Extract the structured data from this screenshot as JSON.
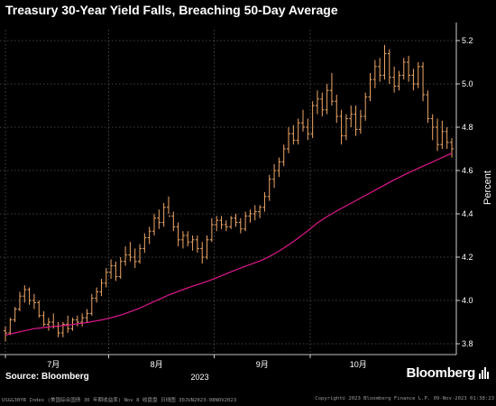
{
  "header": {
    "title": "Treasury 30-Year Yield Falls, Breaching 50-Day Average"
  },
  "footer": {
    "source": "Source: Bloomberg",
    "brand": "Bloomberg",
    "meta_left": "USGG30YR Index (美国综合国债 30 年期收益率) Nov 8 收盘盘 日线图 30JUN2023-08NOV2023",
    "meta_right": "Copyright© 2023 Bloomberg Finance L.P.     09-Nov-2023 01:38:23"
  },
  "colors": {
    "background": "#000000",
    "candle": "#f0a868",
    "moving_average": "#e0188c",
    "grid": "#555555"
  },
  "chart_data": {
    "type": "line",
    "ylabel": "Percent",
    "ylim": [
      3.75,
      5.25
    ],
    "yticks": [
      3.8,
      4.0,
      4.2,
      4.4,
      4.6,
      4.8,
      5.0,
      5.2
    ],
    "ytick_labels": [
      "3.8",
      "4.0",
      "4.2",
      "4.4",
      "4.6",
      "4.8",
      "5.0",
      "5.2"
    ],
    "month_ticks": [
      {
        "label": "7月",
        "index": 0.0
      },
      {
        "label": "8月",
        "index": 21.5
      },
      {
        "label": "9月",
        "index": 43.5
      },
      {
        "label": "10月",
        "index": 63.5
      }
    ],
    "year_label": "2023",
    "n_days": 94,
    "series": [
      {
        "kind": "ohlc",
        "values": [
          [
            3.86,
            3.88,
            3.81,
            3.85
          ],
          [
            3.85,
            3.92,
            3.84,
            3.91
          ],
          [
            3.91,
            3.97,
            3.9,
            3.96
          ],
          [
            3.96,
            4.04,
            3.95,
            4.02
          ],
          [
            4.02,
            4.07,
            3.99,
            4.05
          ],
          [
            4.05,
            4.06,
            3.98,
            4.0
          ],
          [
            4.0,
            4.03,
            3.96,
            3.99
          ],
          [
            3.99,
            4.0,
            3.92,
            3.93
          ],
          [
            3.93,
            3.95,
            3.88,
            3.89
          ],
          [
            3.89,
            3.92,
            3.86,
            3.9
          ],
          [
            3.9,
            3.94,
            3.87,
            3.88
          ],
          [
            3.88,
            3.9,
            3.83,
            3.85
          ],
          [
            3.85,
            3.9,
            3.83,
            3.89
          ],
          [
            3.89,
            3.93,
            3.85,
            3.87
          ],
          [
            3.87,
            3.92,
            3.86,
            3.91
          ],
          [
            3.91,
            3.93,
            3.88,
            3.9
          ],
          [
            3.9,
            3.94,
            3.88,
            3.92
          ],
          [
            3.92,
            3.96,
            3.9,
            3.94
          ],
          [
            3.94,
            4.03,
            3.93,
            4.01
          ],
          [
            4.01,
            4.06,
            3.99,
            4.04
          ],
          [
            4.04,
            4.1,
            4.02,
            4.08
          ],
          [
            4.08,
            4.15,
            4.06,
            4.13
          ],
          [
            4.13,
            4.19,
            4.1,
            4.16
          ],
          [
            4.16,
            4.18,
            4.09,
            4.11
          ],
          [
            4.11,
            4.2,
            4.1,
            4.18
          ],
          [
            4.18,
            4.25,
            4.16,
            4.21
          ],
          [
            4.21,
            4.27,
            4.18,
            4.2
          ],
          [
            4.2,
            4.24,
            4.15,
            4.18
          ],
          [
            4.18,
            4.26,
            4.17,
            4.24
          ],
          [
            4.24,
            4.31,
            4.22,
            4.29
          ],
          [
            4.29,
            4.34,
            4.26,
            4.32
          ],
          [
            4.32,
            4.4,
            4.3,
            4.38
          ],
          [
            4.38,
            4.42,
            4.33,
            4.36
          ],
          [
            4.36,
            4.45,
            4.34,
            4.43
          ],
          [
            4.43,
            4.48,
            4.4,
            4.39
          ],
          [
            4.39,
            4.41,
            4.32,
            4.34
          ],
          [
            4.34,
            4.36,
            4.25,
            4.28
          ],
          [
            4.28,
            4.32,
            4.24,
            4.3
          ],
          [
            4.3,
            4.32,
            4.25,
            4.27
          ],
          [
            4.27,
            4.3,
            4.23,
            4.28
          ],
          [
            4.28,
            4.3,
            4.22,
            4.24
          ],
          [
            4.24,
            4.27,
            4.17,
            4.2
          ],
          [
            4.2,
            4.3,
            4.19,
            4.28
          ],
          [
            4.28,
            4.38,
            4.27,
            4.35
          ],
          [
            4.35,
            4.39,
            4.32,
            4.37
          ],
          [
            4.37,
            4.39,
            4.33,
            4.35
          ],
          [
            4.35,
            4.37,
            4.32,
            4.34
          ],
          [
            4.34,
            4.39,
            4.33,
            4.38
          ],
          [
            4.38,
            4.4,
            4.34,
            4.36
          ],
          [
            4.36,
            4.38,
            4.31,
            4.33
          ],
          [
            4.33,
            4.41,
            4.32,
            4.39
          ],
          [
            4.39,
            4.42,
            4.36,
            4.4
          ],
          [
            4.4,
            4.44,
            4.37,
            4.41
          ],
          [
            4.41,
            4.44,
            4.38,
            4.43
          ],
          [
            4.43,
            4.5,
            4.41,
            4.48
          ],
          [
            4.48,
            4.58,
            4.46,
            4.56
          ],
          [
            4.56,
            4.63,
            4.52,
            4.6
          ],
          [
            4.6,
            4.66,
            4.57,
            4.64
          ],
          [
            4.64,
            4.72,
            4.62,
            4.7
          ],
          [
            4.7,
            4.8,
            4.68,
            4.77
          ],
          [
            4.77,
            4.81,
            4.72,
            4.74
          ],
          [
            4.74,
            4.84,
            4.72,
            4.82
          ],
          [
            4.82,
            4.88,
            4.78,
            4.8
          ],
          [
            4.8,
            4.84,
            4.74,
            4.77
          ],
          [
            4.77,
            4.92,
            4.75,
            4.9
          ],
          [
            4.9,
            4.97,
            4.86,
            4.93
          ],
          [
            4.93,
            4.96,
            4.85,
            4.88
          ],
          [
            4.88,
            5.0,
            4.86,
            4.97
          ],
          [
            4.97,
            5.05,
            4.9,
            4.92
          ],
          [
            4.92,
            4.95,
            4.82,
            4.85
          ],
          [
            4.85,
            4.88,
            4.72,
            4.76
          ],
          [
            4.76,
            4.86,
            4.74,
            4.84
          ],
          [
            4.84,
            4.9,
            4.8,
            4.86
          ],
          [
            4.86,
            4.9,
            4.76,
            4.79
          ],
          [
            4.79,
            4.88,
            4.77,
            4.85
          ],
          [
            4.85,
            4.96,
            4.83,
            4.94
          ],
          [
            4.94,
            5.05,
            4.92,
            5.02
          ],
          [
            5.02,
            5.11,
            4.98,
            5.08
          ],
          [
            5.08,
            5.12,
            5.01,
            5.04
          ],
          [
            5.04,
            5.18,
            5.02,
            5.14
          ],
          [
            5.14,
            5.16,
            5.0,
            5.03
          ],
          [
            5.03,
            5.08,
            4.96,
            4.99
          ],
          [
            4.99,
            5.06,
            4.97,
            5.04
          ],
          [
            5.04,
            5.12,
            5.02,
            5.1
          ],
          [
            5.1,
            5.13,
            5.01,
            5.04
          ],
          [
            5.04,
            5.07,
            4.97,
            5.0
          ],
          [
            5.0,
            5.1,
            4.98,
            5.08
          ],
          [
            5.08,
            5.1,
            4.92,
            4.95
          ],
          [
            4.95,
            4.97,
            4.82,
            4.84
          ],
          [
            4.84,
            4.86,
            4.74,
            4.8
          ],
          [
            4.8,
            4.84,
            4.69,
            4.72
          ],
          [
            4.72,
            4.83,
            4.7,
            4.78
          ],
          [
            4.78,
            4.8,
            4.7,
            4.73
          ],
          [
            4.73,
            4.75,
            4.66,
            4.7
          ]
        ]
      },
      {
        "kind": "moving_average",
        "values": [
          3.84,
          3.845,
          3.85,
          3.855,
          3.86,
          3.865,
          3.87,
          3.872,
          3.875,
          3.877,
          3.88,
          3.882,
          3.884,
          3.886,
          3.889,
          3.892,
          3.895,
          3.898,
          3.902,
          3.906,
          3.91,
          3.915,
          3.92,
          3.926,
          3.932,
          3.94,
          3.948,
          3.956,
          3.965,
          3.975,
          3.985,
          3.995,
          4.005,
          4.015,
          4.025,
          4.033,
          4.042,
          4.05,
          4.058,
          4.066,
          4.073,
          4.08,
          4.088,
          4.096,
          4.105,
          4.114,
          4.123,
          4.132,
          4.141,
          4.15,
          4.158,
          4.166,
          4.174,
          4.182,
          4.192,
          4.203,
          4.215,
          4.228,
          4.242,
          4.257,
          4.272,
          4.288,
          4.305,
          4.322,
          4.34,
          4.358,
          4.373,
          4.387,
          4.4,
          4.413,
          4.425,
          4.437,
          4.449,
          4.461,
          4.473,
          4.485,
          4.497,
          4.509,
          4.521,
          4.533,
          4.545,
          4.557,
          4.568,
          4.579,
          4.59,
          4.6,
          4.61,
          4.62,
          4.63,
          4.64,
          4.65,
          4.66,
          4.67,
          4.68
        ]
      }
    ]
  }
}
